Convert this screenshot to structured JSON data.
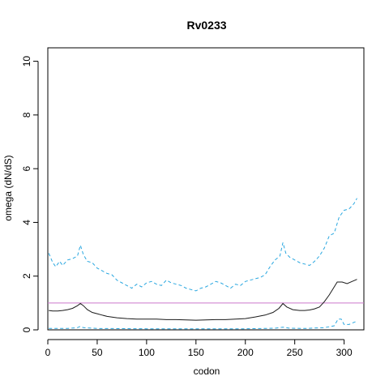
{
  "chart_data": {
    "type": "line",
    "title": "Rv0233",
    "xlabel": "codon",
    "ylabel": "omega (dN/dS)",
    "xlim": [
      0,
      320
    ],
    "ylim": [
      0,
      10.5
    ],
    "x_ticks": [
      0,
      50,
      100,
      150,
      200,
      250,
      300
    ],
    "y_ticks": [
      0,
      2,
      4,
      6,
      8,
      10
    ],
    "reference_line": {
      "y": 1,
      "color": "#cc79cc"
    },
    "grid": false,
    "legend": "none",
    "series": [
      {
        "style": "dashed",
        "color": "#29a7e0",
        "points": [
          [
            1,
            2.85
          ],
          [
            5,
            2.5
          ],
          [
            8,
            2.35
          ],
          [
            12,
            2.55
          ],
          [
            15,
            2.4
          ],
          [
            20,
            2.6
          ],
          [
            25,
            2.65
          ],
          [
            30,
            2.75
          ],
          [
            33,
            3.15
          ],
          [
            36,
            2.8
          ],
          [
            40,
            2.55
          ],
          [
            45,
            2.5
          ],
          [
            50,
            2.3
          ],
          [
            55,
            2.2
          ],
          [
            60,
            2.1
          ],
          [
            65,
            2.05
          ],
          [
            70,
            1.85
          ],
          [
            75,
            1.75
          ],
          [
            80,
            1.65
          ],
          [
            85,
            1.55
          ],
          [
            90,
            1.7
          ],
          [
            95,
            1.6
          ],
          [
            100,
            1.75
          ],
          [
            105,
            1.8
          ],
          [
            110,
            1.7
          ],
          [
            115,
            1.65
          ],
          [
            120,
            1.85
          ],
          [
            125,
            1.75
          ],
          [
            130,
            1.7
          ],
          [
            135,
            1.65
          ],
          [
            140,
            1.55
          ],
          [
            145,
            1.5
          ],
          [
            150,
            1.45
          ],
          [
            155,
            1.55
          ],
          [
            160,
            1.6
          ],
          [
            165,
            1.7
          ],
          [
            170,
            1.8
          ],
          [
            175,
            1.75
          ],
          [
            180,
            1.65
          ],
          [
            185,
            1.55
          ],
          [
            190,
            1.7
          ],
          [
            195,
            1.65
          ],
          [
            200,
            1.8
          ],
          [
            205,
            1.85
          ],
          [
            210,
            1.9
          ],
          [
            215,
            1.95
          ],
          [
            220,
            2.05
          ],
          [
            225,
            2.35
          ],
          [
            230,
            2.6
          ],
          [
            235,
            2.75
          ],
          [
            238,
            3.25
          ],
          [
            241,
            2.85
          ],
          [
            245,
            2.7
          ],
          [
            250,
            2.6
          ],
          [
            255,
            2.5
          ],
          [
            260,
            2.45
          ],
          [
            265,
            2.4
          ],
          [
            270,
            2.55
          ],
          [
            275,
            2.75
          ],
          [
            280,
            3.05
          ],
          [
            285,
            3.5
          ],
          [
            290,
            3.6
          ],
          [
            295,
            4.2
          ],
          [
            300,
            4.45
          ],
          [
            305,
            4.5
          ],
          [
            310,
            4.7
          ],
          [
            313,
            4.9
          ]
        ]
      },
      {
        "style": "solid",
        "color": "#1a1a1a",
        "points": [
          [
            1,
            0.72
          ],
          [
            5,
            0.7
          ],
          [
            10,
            0.7
          ],
          [
            15,
            0.72
          ],
          [
            20,
            0.75
          ],
          [
            25,
            0.8
          ],
          [
            30,
            0.9
          ],
          [
            33,
            0.98
          ],
          [
            36,
            0.9
          ],
          [
            40,
            0.75
          ],
          [
            45,
            0.65
          ],
          [
            50,
            0.6
          ],
          [
            55,
            0.55
          ],
          [
            60,
            0.5
          ],
          [
            70,
            0.45
          ],
          [
            80,
            0.42
          ],
          [
            90,
            0.4
          ],
          [
            100,
            0.4
          ],
          [
            110,
            0.4
          ],
          [
            120,
            0.38
          ],
          [
            130,
            0.38
          ],
          [
            140,
            0.37
          ],
          [
            150,
            0.36
          ],
          [
            160,
            0.37
          ],
          [
            170,
            0.38
          ],
          [
            180,
            0.38
          ],
          [
            190,
            0.4
          ],
          [
            200,
            0.42
          ],
          [
            210,
            0.48
          ],
          [
            220,
            0.55
          ],
          [
            228,
            0.65
          ],
          [
            234,
            0.8
          ],
          [
            238,
            0.98
          ],
          [
            242,
            0.85
          ],
          [
            248,
            0.75
          ],
          [
            255,
            0.72
          ],
          [
            260,
            0.72
          ],
          [
            265,
            0.74
          ],
          [
            270,
            0.78
          ],
          [
            275,
            0.85
          ],
          [
            280,
            1.05
          ],
          [
            285,
            1.3
          ],
          [
            290,
            1.6
          ],
          [
            293,
            1.78
          ],
          [
            298,
            1.78
          ],
          [
            303,
            1.72
          ],
          [
            308,
            1.8
          ],
          [
            313,
            1.88
          ]
        ]
      },
      {
        "style": "dashed",
        "color": "#29a7e0",
        "points": [
          [
            1,
            0.05
          ],
          [
            20,
            0.05
          ],
          [
            30,
            0.08
          ],
          [
            33,
            0.13
          ],
          [
            36,
            0.08
          ],
          [
            50,
            0.05
          ],
          [
            100,
            0.04
          ],
          [
            150,
            0.04
          ],
          [
            200,
            0.04
          ],
          [
            230,
            0.06
          ],
          [
            238,
            0.1
          ],
          [
            245,
            0.06
          ],
          [
            260,
            0.05
          ],
          [
            280,
            0.08
          ],
          [
            290,
            0.15
          ],
          [
            294,
            0.4
          ],
          [
            297,
            0.4
          ],
          [
            300,
            0.2
          ],
          [
            305,
            0.2
          ],
          [
            310,
            0.28
          ],
          [
            313,
            0.32
          ]
        ]
      }
    ]
  }
}
